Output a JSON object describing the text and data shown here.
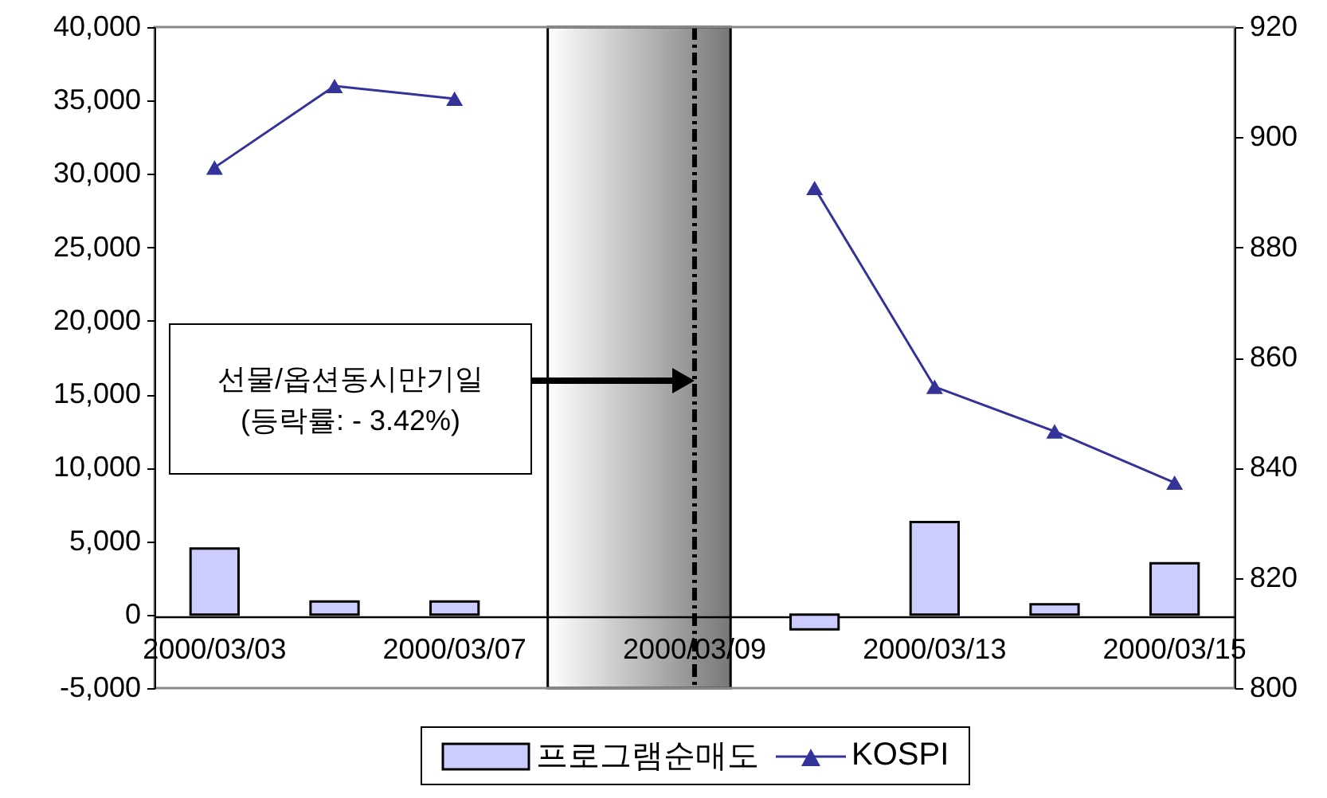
{
  "chart_data": {
    "type": "bar",
    "categories": [
      "2000/03/03",
      null,
      "2000/03/07",
      null,
      "2000/03/09",
      null,
      "2000/03/13",
      null,
      "2000/03/15"
    ],
    "series": [
      {
        "name": "프로그램순매도",
        "color": "#ccccff",
        "values": [
          4500,
          900,
          900,
          null,
          null,
          -1000,
          6300,
          700,
          3500
        ]
      },
      {
        "name": "KOSPI",
        "type": "line",
        "axis": "y2",
        "color": "#333399",
        "marker": "triangle",
        "values": [
          894.5,
          909.3,
          907,
          null,
          null,
          890.8,
          854.7,
          846.6,
          837.3
        ]
      }
    ],
    "ylim": [
      -5000,
      40000
    ],
    "yticks": [
      {
        "value": -5000,
        "label": "-5,000"
      },
      0,
      {
        "value": 5000,
        "label": "5,000"
      },
      {
        "value": 10000,
        "label": "10,000"
      },
      {
        "value": 15000,
        "label": "15,000"
      },
      {
        "value": 20000,
        "label": "20,000"
      },
      {
        "value": 25000,
        "label": "25,000"
      },
      {
        "value": 30000,
        "label": "30,000"
      },
      {
        "value": 35000,
        "label": "35,000"
      },
      {
        "value": 40000,
        "label": "40,000"
      }
    ],
    "y2lim": [
      800,
      920
    ],
    "y2ticks": [
      800,
      820,
      840,
      860,
      880,
      900,
      920
    ],
    "ref_lines": [
      {
        "axis": "x",
        "value": "2000/03/09",
        "color": "#000000",
        "line_style": "dashed"
      }
    ],
    "annotations": [
      "선물/옵션동시만기일",
      "(등락률: - 3.42%)"
    ],
    "grid": false,
    "legend": "bottom"
  }
}
